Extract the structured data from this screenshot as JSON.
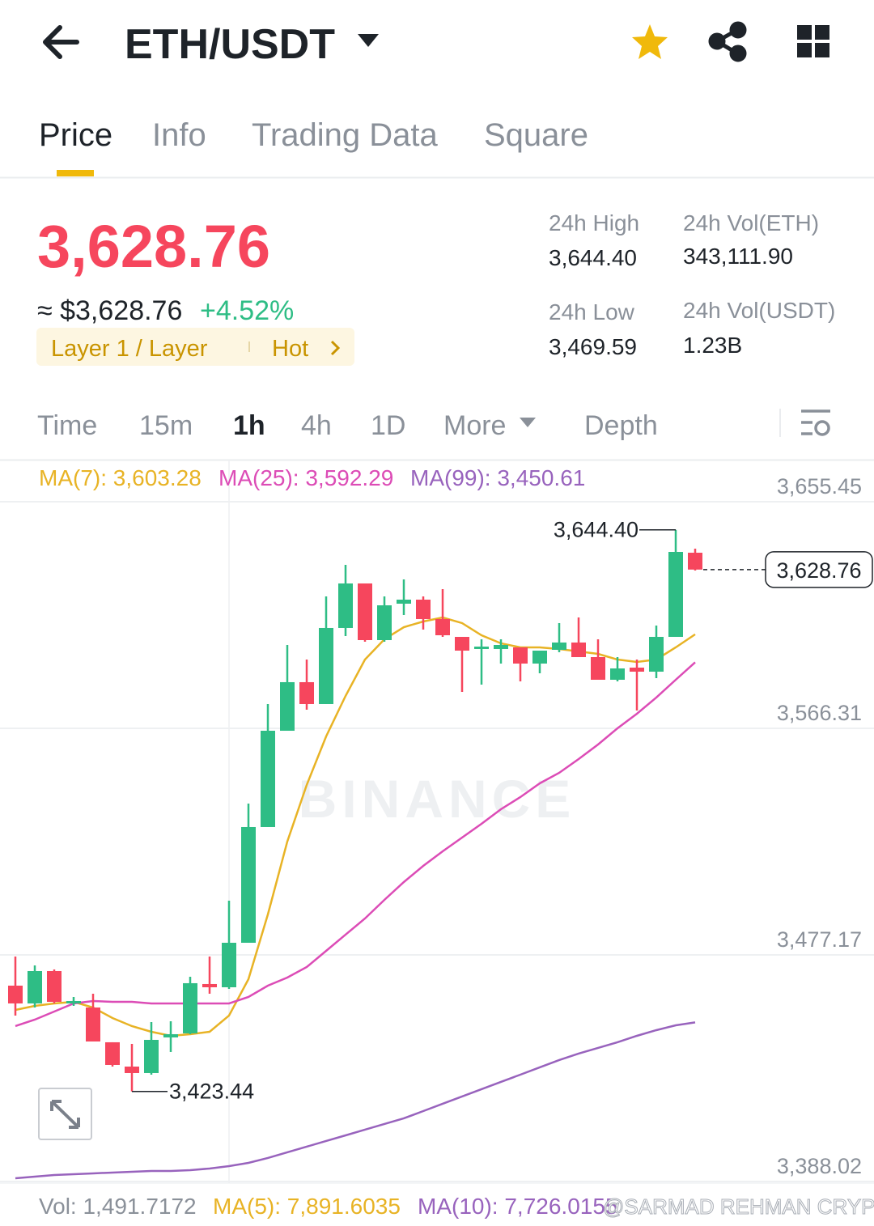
{
  "header": {
    "pair": "ETH/USDT"
  },
  "tabs": [
    "Price",
    "Info",
    "Trading Data",
    "Square"
  ],
  "price": {
    "last": "3,628.76",
    "approx": "≈ $3,628.76",
    "change": "+4.52%",
    "tag": "Layer 1 / Layer",
    "hot": "Hot"
  },
  "stats": [
    {
      "label": "24h High",
      "value": "3,644.40"
    },
    {
      "label": "24h Vol(ETH)",
      "value": "343,111.90"
    },
    {
      "label": "24h Low",
      "value": "3,469.59"
    },
    {
      "label": "24h Vol(USDT)",
      "value": "1.23B"
    }
  ],
  "intervals": [
    "Time",
    "15m",
    "1h",
    "4h",
    "1D",
    "More"
  ],
  "depth": "Depth",
  "chart_data": {
    "type": "candlestick",
    "up_color": "#2ebd85",
    "down_color": "#f6465d",
    "open": [
      3465.07,
      3458.07,
      3470.8,
      3458.07,
      3456.47,
      3442.79,
      3433.23,
      3430.69,
      3444.7,
      3446.29,
      3465.71,
      3464.43,
      3481.94,
      3527.47,
      3565.35,
      3584.46,
      3575.86,
      3605.79,
      3623.3,
      3601.01,
      3615.34,
      3616.93,
      3609.29,
      3602.28,
      3597.51,
      3597.51,
      3598.15,
      3591.78,
      3597.19,
      3600.06,
      3594.32,
      3585.41,
      3590.19,
      3588.59,
      3602.28,
      3635.39
    ],
    "high": [
      3476.53,
      3473.03,
      3471.44,
      3460.61,
      3461.89,
      3442.79,
      3442.15,
      3450.74,
      3451.06,
      3468.57,
      3476.53,
      3498.5,
      3536.7,
      3575.86,
      3599.1,
      3593.37,
      3618.2,
      3630.62,
      3623.3,
      3618.2,
      3624.89,
      3618.2,
      3621.07,
      3602.28,
      3601.33,
      3601.33,
      3598.15,
      3596.87,
      3607.7,
      3609.92,
      3601.33,
      3594.32,
      3593.37,
      3606.74,
      3644.4,
      3636.99
    ],
    "low": [
      3453.29,
      3456.47,
      3458.07,
      3457.11,
      3443.1,
      3433.23,
      3423.44,
      3430.05,
      3438.97,
      3445.97,
      3461.89,
      3463.8,
      3481.94,
      3527.47,
      3565.35,
      3573.63,
      3575.86,
      3602.6,
      3600.37,
      3600.37,
      3610.88,
      3605.15,
      3602.28,
      3580.64,
      3583.5,
      3591.78,
      3584.77,
      3587.96,
      3596.24,
      3594.32,
      3585.41,
      3584.77,
      3573.31,
      3586.05,
      3602.28,
      3628.39
    ],
    "close": [
      3458.07,
      3470.8,
      3458.7,
      3459.02,
      3443.1,
      3433.87,
      3430.69,
      3443.74,
      3445.97,
      3466.03,
      3464.43,
      3481.94,
      3527.47,
      3565.35,
      3584.46,
      3575.86,
      3605.79,
      3623.3,
      3601.01,
      3614.7,
      3616.93,
      3609.29,
      3602.92,
      3596.87,
      3598.46,
      3599.1,
      3591.78,
      3596.87,
      3600.06,
      3594.32,
      3585.41,
      3589.87,
      3588.59,
      3602.28,
      3635.71,
      3628.76
    ],
    "ma_lines": [
      {
        "label": "MA(7): 3,603.28",
        "color": "#e8b325",
        "values": [
          3455.52,
          3457.11,
          3458.07,
          3458.7,
          3456.47,
          3452.34,
          3449.15,
          3446.92,
          3445.33,
          3445.97,
          3446.92,
          3453.29,
          3467.62,
          3493.09,
          3521.74,
          3544.02,
          3563.13,
          3579.04,
          3593.37,
          3601.33,
          3606.1,
          3608.33,
          3609.92,
          3607.7,
          3602.92,
          3599.74,
          3598.15,
          3598.15,
          3597.51,
          3596.55,
          3595.6,
          3593.37,
          3592.41,
          3593.37,
          3598.15,
          3603.28
        ]
      },
      {
        "label": "MA(25): 3,592.29",
        "color": "#dc4cb6",
        "values": [
          3449.15,
          3451.7,
          3454.88,
          3458.07,
          3459.02,
          3458.7,
          3458.7,
          3458.07,
          3458.07,
          3458.07,
          3458.07,
          3458.07,
          3460.61,
          3465.07,
          3468.25,
          3472.39,
          3478.76,
          3485.13,
          3491.49,
          3498.82,
          3505.82,
          3512.19,
          3517.92,
          3523.33,
          3528.74,
          3534.47,
          3539.25,
          3544.66,
          3548.8,
          3554.21,
          3559.94,
          3566.31,
          3572.04,
          3578.41,
          3585.41,
          3592.29
        ]
      },
      {
        "label": "MA(99): 3,450.61",
        "color": "#9863bd",
        "values": [
          3389.3,
          3389.94,
          3390.57,
          3390.89,
          3391.21,
          3391.53,
          3391.85,
          3392.17,
          3392.17,
          3392.48,
          3393.12,
          3394.08,
          3395.35,
          3397.26,
          3399.49,
          3401.72,
          3403.95,
          3406.17,
          3408.4,
          3410.63,
          3412.86,
          3415.72,
          3418.59,
          3421.46,
          3424.32,
          3427.19,
          3430.05,
          3432.92,
          3435.78,
          3438.33,
          3440.56,
          3442.79,
          3445.33,
          3447.56,
          3449.47,
          3450.61
        ]
      }
    ],
    "ylim": [
      3388.02,
      3655.45
    ],
    "yticks": [
      {
        "value": 3388.02,
        "label": "3,388.02"
      },
      {
        "value": 3477.17,
        "label": "3,477.17"
      },
      {
        "value": 3566.31,
        "label": "3,566.31"
      },
      {
        "value": 3655.45,
        "label": "3,655.45"
      }
    ],
    "grid": true,
    "annotations": [
      {
        "value": 3644.4,
        "label": "3,644.40"
      },
      {
        "value": 3423.44,
        "label": "3,423.44"
      }
    ],
    "last_price": {
      "value": 3628.76,
      "label": "3,628.76"
    }
  },
  "volume": {
    "vol": "Vol: 1,491.7172",
    "ma5": "MA(5): 7,891.6035",
    "ma10": "MA(10): 7,726.0155"
  },
  "watermarks": {
    "brand": "BINANCE",
    "credit": "@SARMAD REHMAN CRYPTO"
  }
}
